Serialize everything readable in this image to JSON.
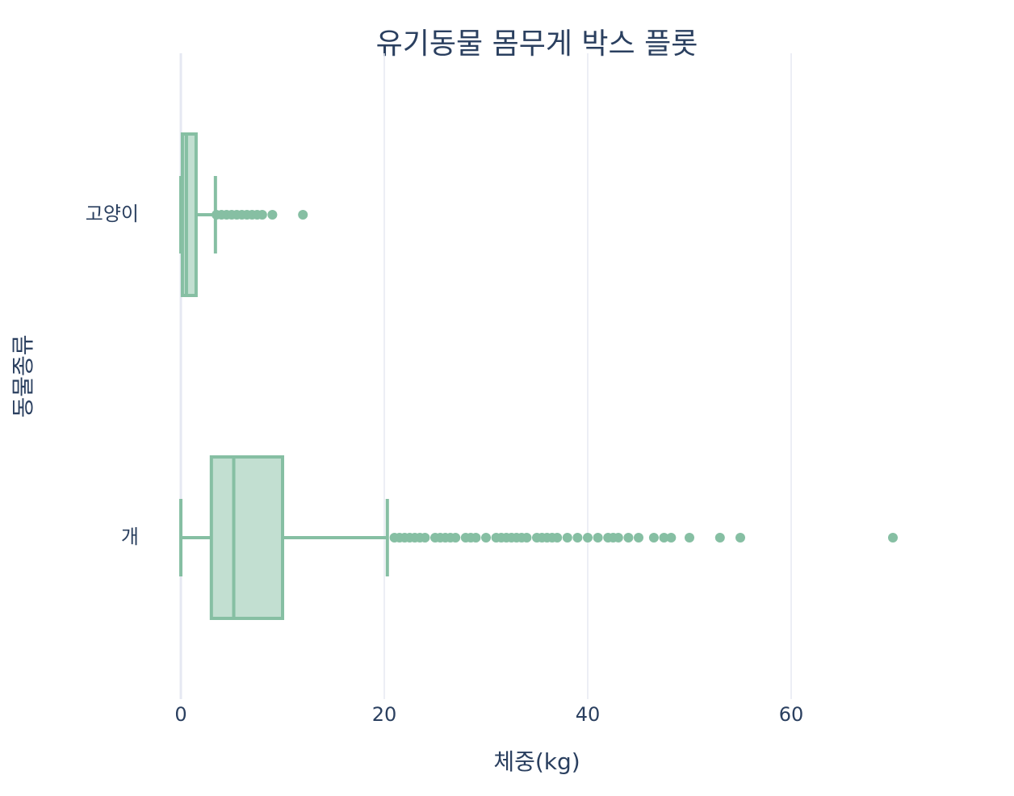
{
  "chart_data": {
    "type": "box",
    "orientation": "horizontal",
    "title": "유기동물 몸무게 박스 플롯",
    "xlabel": "체중(kg)",
    "ylabel": "동물종류",
    "categories": [
      "고양이",
      "개"
    ],
    "color": "#86bfa3",
    "boxes": [
      {
        "min": 0,
        "q1": 0.15,
        "median": 0.55,
        "q3": 1.5,
        "max": 3.4,
        "outliers": [
          3.5,
          4,
          4.5,
          5,
          5.5,
          6,
          6.5,
          7,
          7.5,
          8,
          9,
          12
        ]
      },
      {
        "min": 0,
        "q1": 3,
        "median": 5.2,
        "q3": 10,
        "max": 20.3,
        "outliers": [
          21,
          21.5,
          22,
          22.5,
          23,
          23.5,
          24,
          25,
          25.5,
          26,
          26.5,
          27,
          28,
          28.5,
          29,
          30,
          31,
          31.5,
          32,
          32.5,
          33,
          33.5,
          34,
          35,
          35.5,
          36,
          36.5,
          37,
          38,
          39,
          40,
          41,
          42,
          42.5,
          43,
          44,
          45,
          46.5,
          47.5,
          48.2,
          50,
          53,
          55,
          70
        ]
      }
    ],
    "xlim": [
      -1,
      76
    ],
    "xticks": [
      0,
      20,
      40,
      60
    ],
    "grid": true
  }
}
